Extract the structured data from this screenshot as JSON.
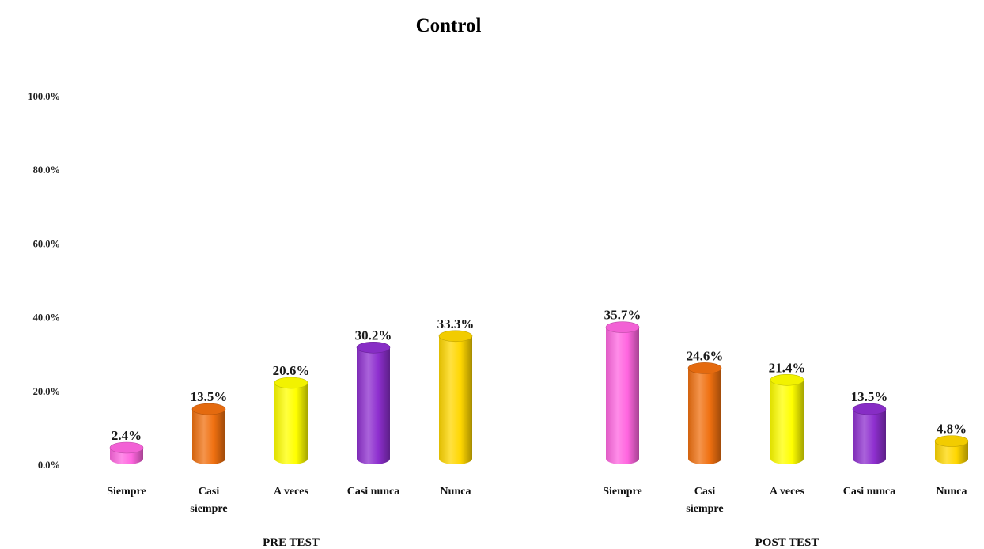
{
  "chart_data": {
    "type": "bar",
    "title": "Control",
    "ylim": [
      0,
      100
    ],
    "yticks": [
      "0.0%",
      "20.0%",
      "40.0%",
      "60.0%",
      "80.0%",
      "100.0%"
    ],
    "groups": [
      {
        "label": "PRE TEST",
        "bars": [
          {
            "category": [
              "Siempre"
            ],
            "value": 2.4,
            "label": "2.4%"
          },
          {
            "category": [
              "Casi",
              "siempre"
            ],
            "value": 13.5,
            "label": "13.5%"
          },
          {
            "category": [
              "A veces"
            ],
            "value": 20.6,
            "label": "20.6%"
          },
          {
            "category": [
              "Casi nunca"
            ],
            "value": 30.2,
            "label": "30.2%"
          },
          {
            "category": [
              "Nunca"
            ],
            "value": 33.3,
            "label": "33.3%"
          }
        ]
      },
      {
        "label": "POST TEST",
        "bars": [
          {
            "category": [
              "Siempre"
            ],
            "value": 35.7,
            "label": "35.7%"
          },
          {
            "category": [
              "Casi",
              "siempre"
            ],
            "value": 24.6,
            "label": "24.6%"
          },
          {
            "category": [
              "A veces"
            ],
            "value": 21.4,
            "label": "21.4%"
          },
          {
            "category": [
              "Casi nunca"
            ],
            "value": 13.5,
            "label": "13.5%"
          },
          {
            "category": [
              "Nunca"
            ],
            "value": 4.8,
            "label": "4.8%"
          }
        ]
      }
    ],
    "category_colors": {
      "Siempre": "#ff66e0",
      "Casi siempre": "#f07010",
      "A veces": "#ffff00",
      "Casi nunca": "#8e2fcf",
      "Nunca": "#ffd700"
    },
    "grid": false,
    "legend": "none"
  }
}
